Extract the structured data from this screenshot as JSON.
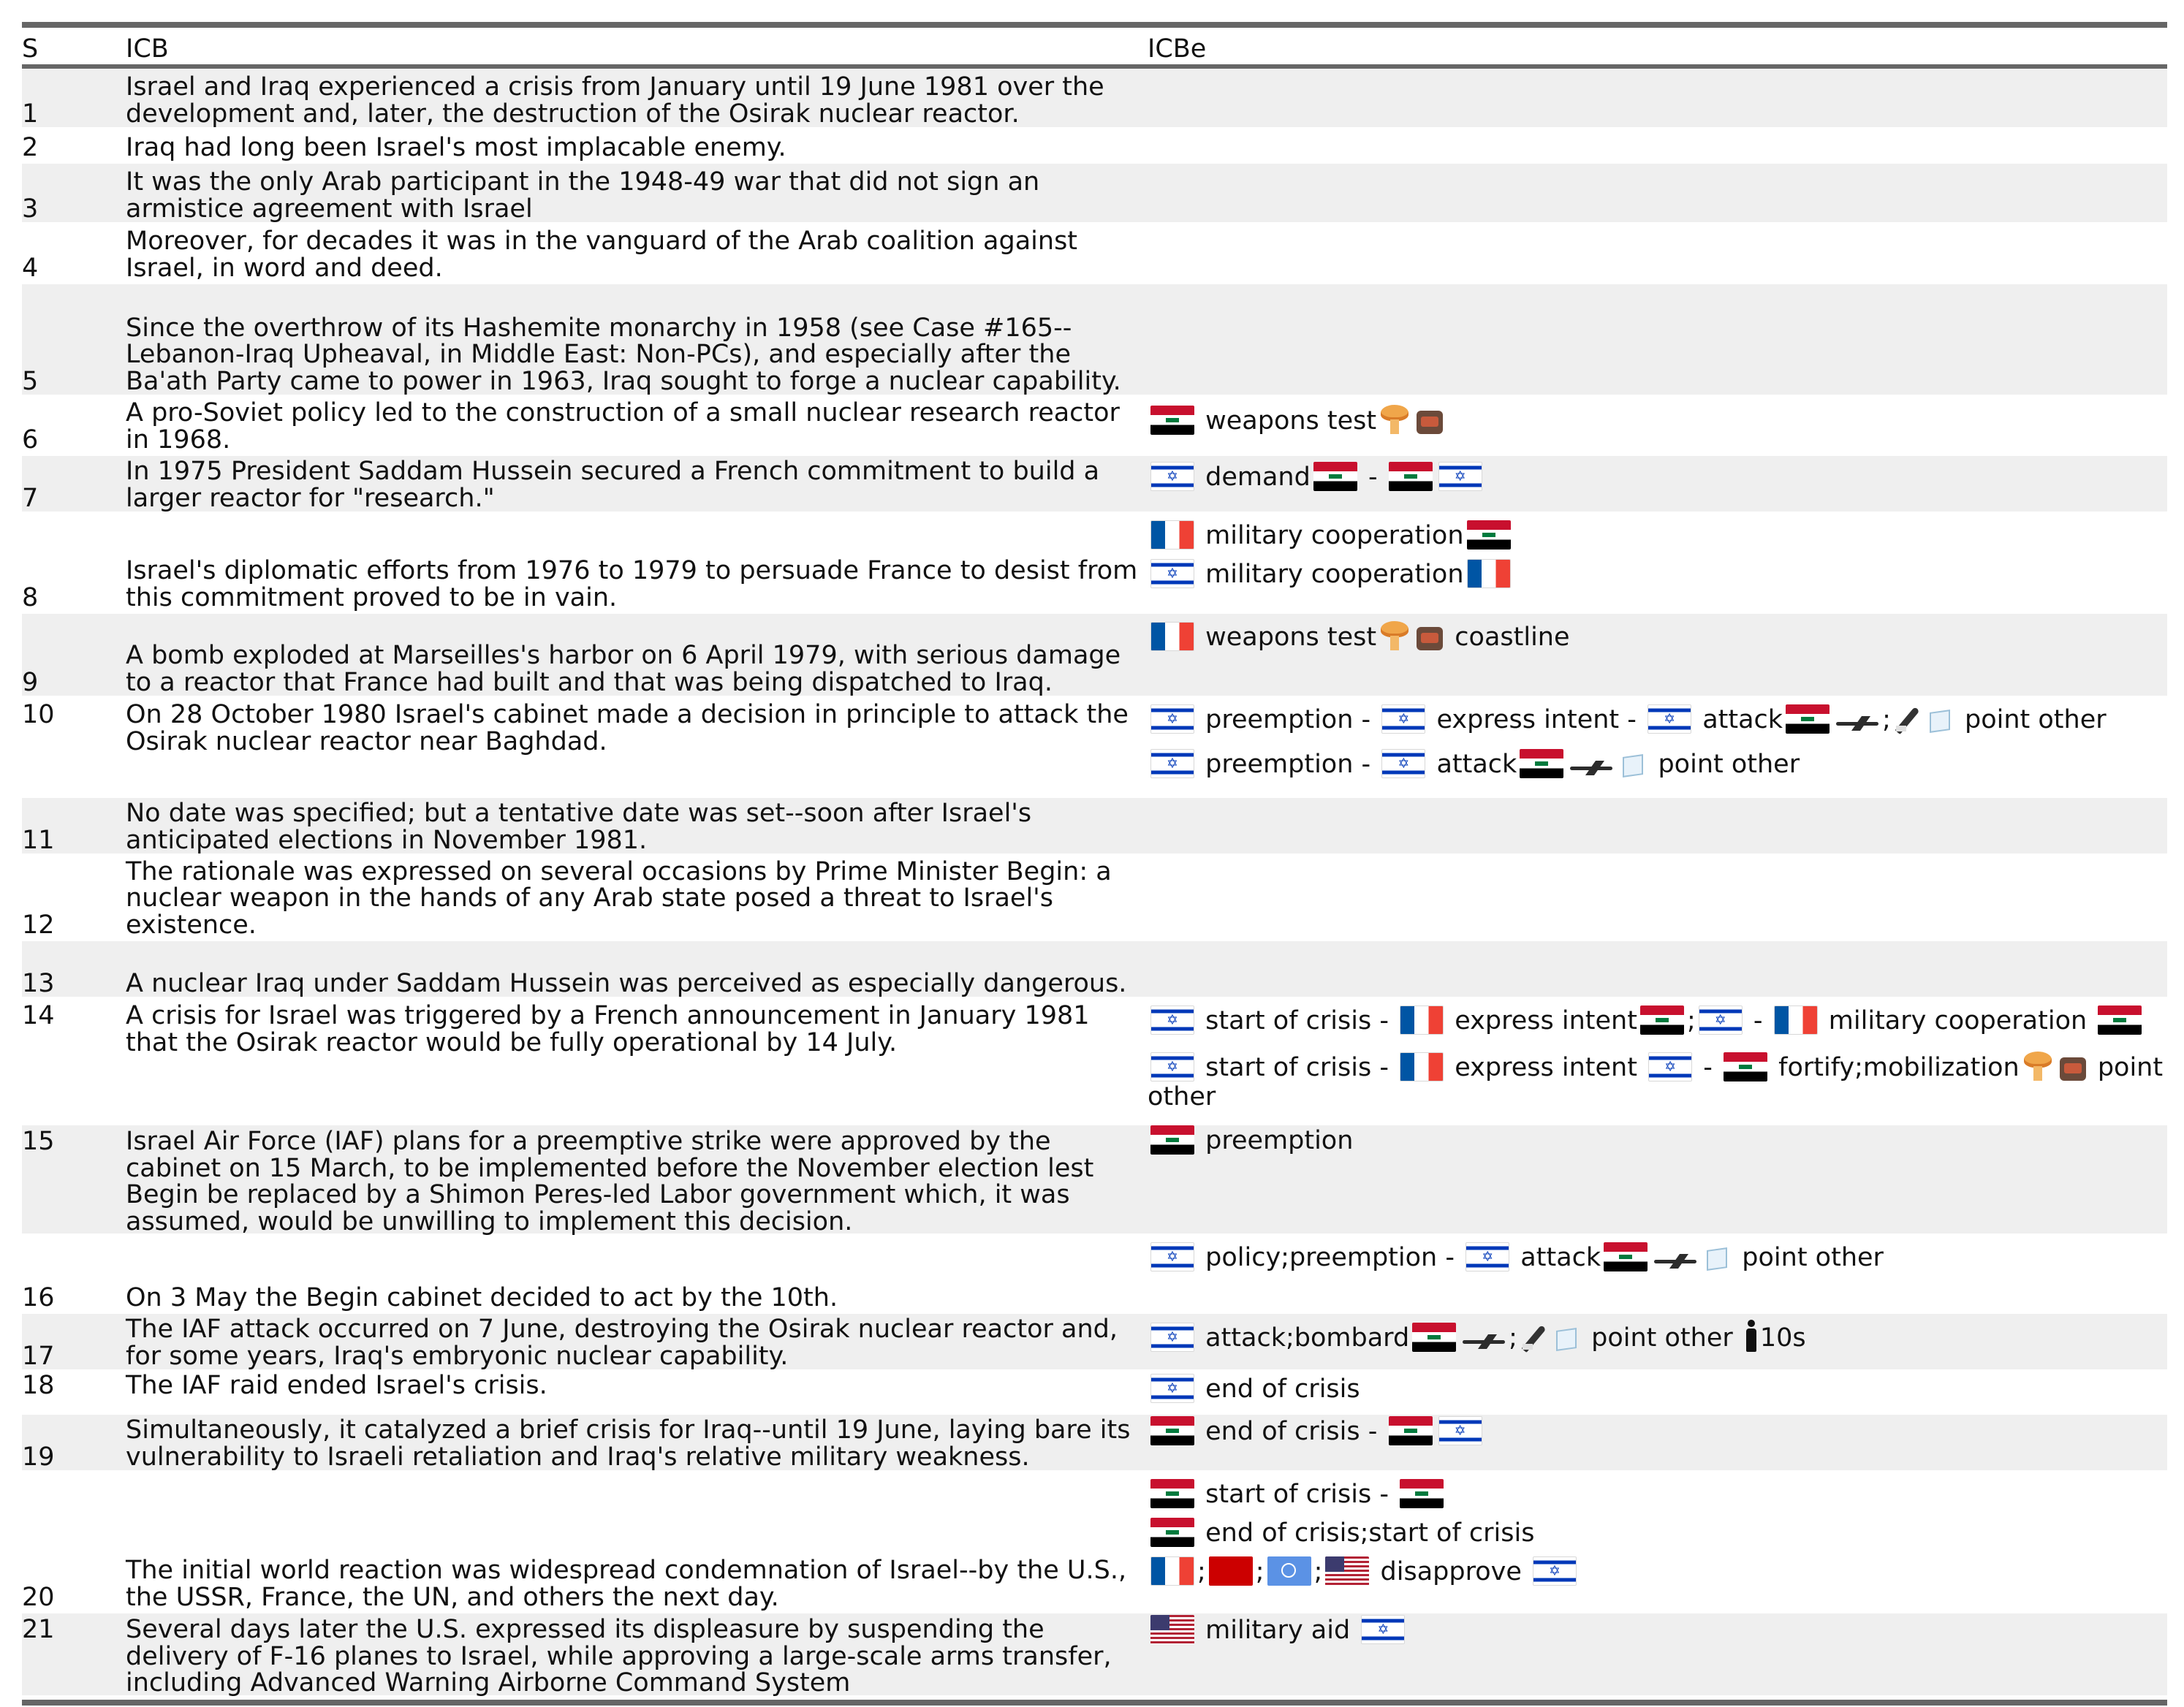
{
  "header": {
    "s": "S",
    "icb": "ICB",
    "icbe": "ICBe"
  },
  "sep": {
    "dash": "-",
    "semi": ";"
  },
  "rows": {
    "r1": {
      "s": "1",
      "icb": "Israel and Iraq experienced a crisis from January until 19 June 1981 over the development and, later, the destruction of the Osirak nuclear reactor."
    },
    "r2": {
      "s": "2",
      "icb": "Iraq had long been Israel's most implacable enemy."
    },
    "r3": {
      "s": "3",
      "icb": "It was the only Arab participant in the 1948-49 war that did not sign an armistice agreement with Israel"
    },
    "r4": {
      "s": "4",
      "icb": "Moreover, for decades it was in the vanguard of the Arab coalition against Israel, in word and deed."
    },
    "r5": {
      "s": "5",
      "icb": "Since the overthrow of its Hashemite monarchy in 1958 (see Case #165--Lebanon-Iraq Upheaval, in Middle East: Non-PCs), and especially after the Ba'ath Party came to power in 1963, Iraq sought to forge a nuclear capability."
    },
    "r6": {
      "s": "6",
      "icb": "A pro-Soviet policy led to the construction of a small nuclear research reactor in 1968."
    },
    "r7": {
      "s": "7",
      "icb": "In 1975 President Saddam Hussein secured a French commitment to build a larger reactor for \"research.\""
    },
    "r8": {
      "s": "8",
      "icb": "Israel's diplomatic efforts from 1976 to 1979 to persuade France to desist from this commitment proved to be in vain."
    },
    "r9": {
      "s": "9",
      "icb": "A bomb exploded at Marseilles's harbor on 6 April 1979, with serious damage to a reactor that France had built and that was being dispatched to Iraq."
    },
    "r10": {
      "s": "10",
      "icb": "On 28 October 1980 Israel's cabinet made a decision in principle to attack the Osirak nuclear reactor near Baghdad."
    },
    "r11": {
      "s": "11",
      "icb": "No date was specified; but a tentative date was set--soon after Israel's anticipated elections in November 1981."
    },
    "r12": {
      "s": "12",
      "icb": "The rationale was expressed on several occasions by Prime Minister Begin: a nuclear weapon in the hands of any Arab state posed a threat to Israel's existence."
    },
    "r13": {
      "s": "13",
      "icb": "A nuclear Iraq under Saddam Hussein was perceived as especially dangerous."
    },
    "r14": {
      "s": "14",
      "icb": "A crisis for Israel was triggered by a French announcement in January 1981 that the Osirak reactor would be fully operational by 14 July."
    },
    "r15": {
      "s": "15",
      "icb": "Israel Air Force (IAF) plans for a preemptive strike were approved by the cabinet on 15 March, to be implemented before the November election lest Begin be replaced by a Shimon Peres-led Labor government which, it was assumed, would be unwilling to implement this decision."
    },
    "r16": {
      "s": "16",
      "icb": "On 3 May the Begin cabinet decided to act by the 10th."
    },
    "r17": {
      "s": "17",
      "icb": "The IAF attack occurred on 7 June, destroying the Osirak nuclear reactor and, for some years, Iraq's embryonic nuclear capability."
    },
    "r18": {
      "s": "18",
      "icb": "The IAF raid ended Israel's crisis."
    },
    "r19": {
      "s": "19",
      "icb": "Simultaneously, it catalyzed a brief crisis for Iraq--until 19 June, laying bare its vulnerability to Israeli retaliation and Iraq's relative military weakness."
    },
    "r20": {
      "s": "20",
      "icb": "The initial world reaction was widespread condemnation of Israel--by the U.S., the USSR, France, the UN, and others the next day."
    },
    "r21": {
      "s": "21",
      "icb": "Several days later the U.S. expressed its displeasure by suspending the delivery of F-16 planes to Israel, while approving a large-scale arms transfer, including Advanced Warning Airborne Command System"
    }
  },
  "events": {
    "e6": {
      "t1": "weapons test"
    },
    "e7": {
      "t1": "demand"
    },
    "e8a": {
      "t1": "military cooperation"
    },
    "e8b": {
      "t1": "military cooperation"
    },
    "e9": {
      "t1": "weapons test",
      "t2": "coastline"
    },
    "e10a": {
      "t1": "preemption",
      "t2": "express intent",
      "t3": "attack",
      "t4": "point other"
    },
    "e10b": {
      "t1": "preemption",
      "t2": "attack",
      "t3": "point other"
    },
    "e14a": {
      "t1": "start of crisis",
      "t2": "express intent",
      "t3": "military cooperation"
    },
    "e14b": {
      "t1": "start of crisis",
      "t2": "express intent",
      "t3": "fortify;mobilization",
      "t4": "point other"
    },
    "e15": {
      "t1": "preemption"
    },
    "e16": {
      "t1": "policy;preemption",
      "t2": "attack",
      "t3": "point other"
    },
    "e17": {
      "t1": "attack;bombard",
      "t2": "point other",
      "t3": "10s"
    },
    "e18": {
      "t1": "end of crisis"
    },
    "e19": {
      "t1": "end of crisis"
    },
    "e19b": {
      "t1": "start of crisis"
    },
    "e19c": {
      "t1": "end of crisis;start of crisis"
    },
    "e20": {
      "t1": "disapprove"
    },
    "e21": {
      "t1": "military aid"
    }
  },
  "icons": {
    "flag_iraq": "flag-iraq-icon",
    "flag_israel": "flag-israel-icon",
    "flag_france": "flag-france-icon",
    "flag_ussr": "flag-ussr-icon",
    "flag_un": "flag-un-icon",
    "flag_usa": "flag-usa-icon",
    "nuclear": "mushroom-cloud-icon",
    "bomb": "bomb-icon",
    "aircraft": "airplane-icon",
    "missile": "rocket-icon",
    "target": "box-icon",
    "person": "person-icon"
  },
  "colors": {
    "row_shade": "#efefef",
    "rule": "#666666"
  }
}
